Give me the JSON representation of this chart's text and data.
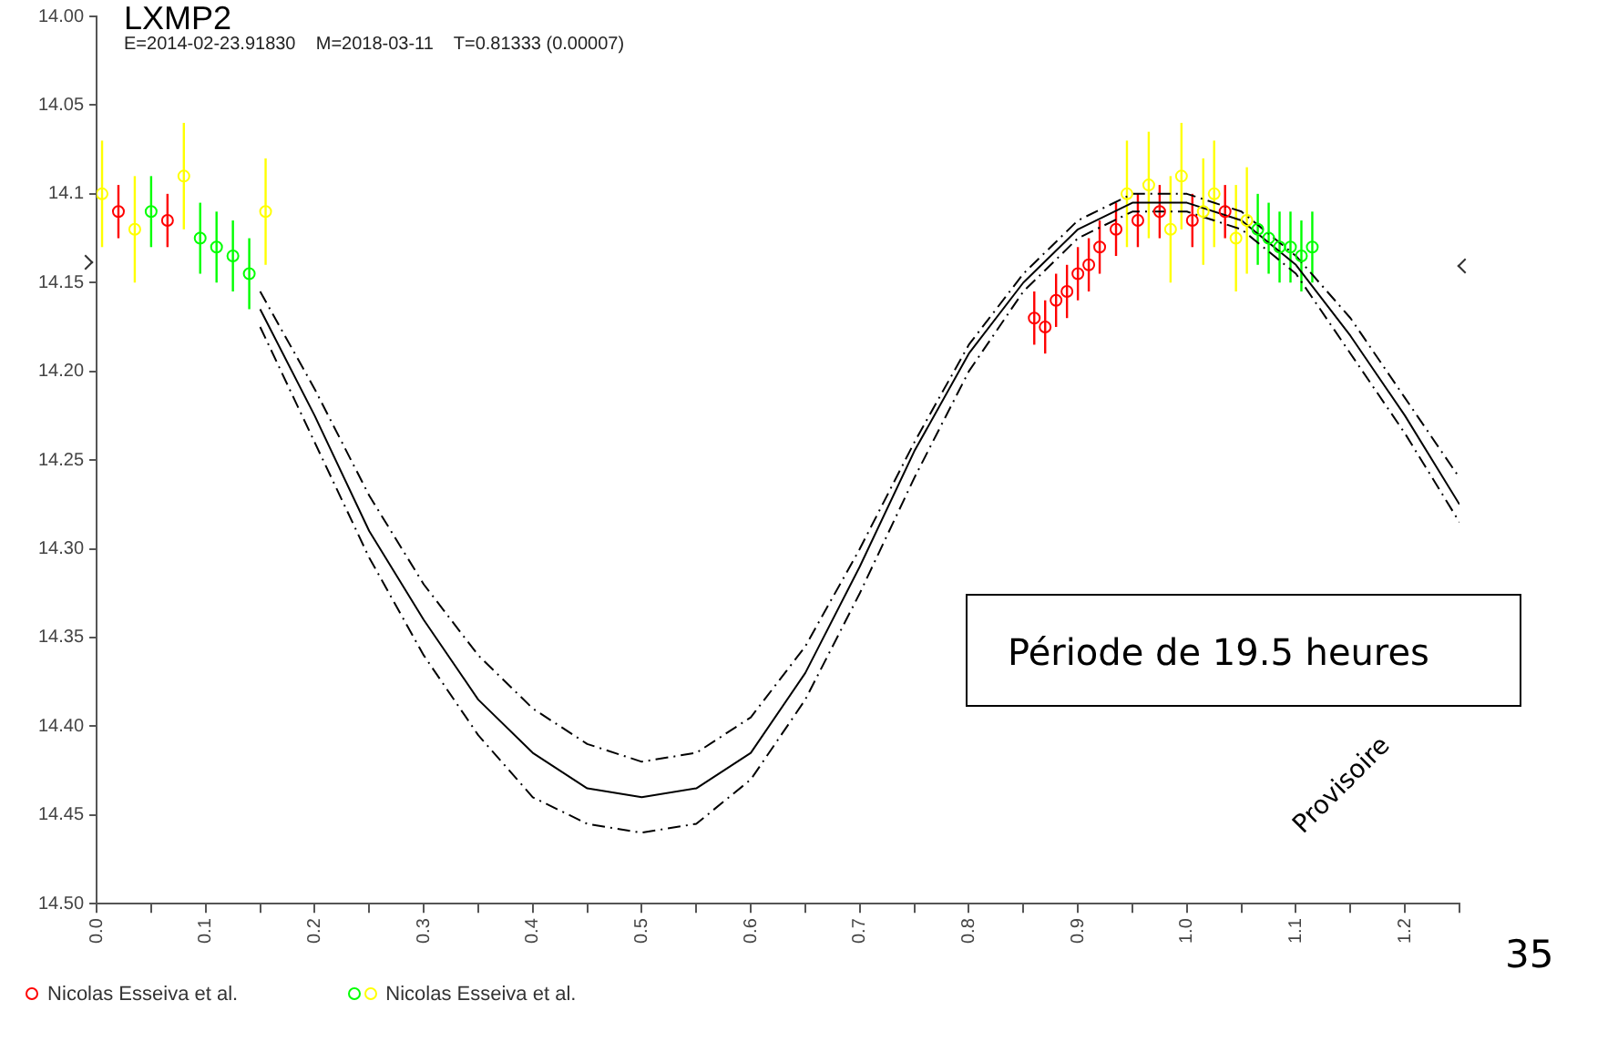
{
  "chart_data": {
    "type": "scatter",
    "title": "LXMP2",
    "subtitle": "E=2014-02-23.91830    M=2018-03-11    T=0.81333 (0.00007)",
    "xlim": [
      0,
      1.25
    ],
    "xticks": [
      {
        "value": 0,
        "label": "0.0"
      },
      {
        "value": 0.05,
        "label": null
      },
      {
        "value": 0.1,
        "label": "0.1"
      },
      {
        "value": 0.15,
        "label": null
      },
      {
        "value": 0.2,
        "label": "0.2"
      },
      {
        "value": 0.25,
        "label": null
      },
      {
        "value": 0.3,
        "label": "0.3"
      },
      {
        "value": 0.35,
        "label": null
      },
      {
        "value": 0.4,
        "label": "0.4"
      },
      {
        "value": 0.45,
        "label": null
      },
      {
        "value": 0.5,
        "label": "0.5"
      },
      {
        "value": 0.55,
        "label": null
      },
      {
        "value": 0.6,
        "label": "0.6"
      },
      {
        "value": 0.65,
        "label": null
      },
      {
        "value": 0.7,
        "label": "0.7"
      },
      {
        "value": 0.75,
        "label": null
      },
      {
        "value": 0.8,
        "label": "0.8"
      },
      {
        "value": 0.85,
        "label": null
      },
      {
        "value": 0.9,
        "label": "0.9"
      },
      {
        "value": 0.95,
        "label": null
      },
      {
        "value": 1,
        "label": "1.0"
      },
      {
        "value": 1.05,
        "label": null
      },
      {
        "value": 1.1,
        "label": "1.1"
      },
      {
        "value": 1.15,
        "label": null
      },
      {
        "value": 1.2,
        "label": "1.2"
      },
      {
        "value": 1.25,
        "label": null
      }
    ],
    "ylim": [
      14.5,
      14.0
    ],
    "yticks": [
      {
        "value": 14,
        "label": "14.00"
      },
      {
        "value": 14.05,
        "label": "14.05"
      },
      {
        "value": 14.1,
        "label": "14.1"
      },
      {
        "value": 14.15,
        "label": "14.15"
      },
      {
        "value": 14.2,
        "label": "14.20"
      },
      {
        "value": 14.25,
        "label": "14.25"
      },
      {
        "value": 14.3,
        "label": "14.30"
      },
      {
        "value": 14.35,
        "label": "14.35"
      },
      {
        "value": 14.4,
        "label": "14.40"
      },
      {
        "value": 14.45,
        "label": "14.45"
      },
      {
        "value": 14.5,
        "label": "14.50"
      }
    ],
    "grid": false,
    "legend": "bottom left",
    "marker": "circle",
    "annotations": [
      "Période de 19.5 heures",
      "Provisoire",
      "35"
    ],
    "series": [
      {
        "type": "line",
        "color": "#000000",
        "line_style": "dashed",
        "marker": "none",
        "x": [
          0.15,
          0.2,
          0.25,
          0.3,
          0.35,
          0.4,
          0.45,
          0.5,
          0.55,
          0.6,
          0.65,
          0.7,
          0.75,
          0.8,
          0.85,
          0.9,
          0.95,
          1.0,
          1.05,
          1.1,
          1.15,
          1.2,
          1.25
        ],
        "values": [
          14.155,
          14.21,
          14.27,
          14.32,
          14.36,
          14.39,
          14.41,
          14.42,
          14.415,
          14.395,
          14.355,
          14.3,
          14.24,
          14.185,
          14.145,
          14.115,
          14.1,
          14.1,
          14.11,
          14.135,
          14.17,
          14.215,
          14.26
        ]
      },
      {
        "type": "line",
        "color": "#000000",
        "line_style": "solid",
        "marker": "none",
        "x": [
          0.15,
          0.2,
          0.25,
          0.3,
          0.35,
          0.4,
          0.45,
          0.5,
          0.55,
          0.6,
          0.65,
          0.7,
          0.75,
          0.8,
          0.85,
          0.9,
          0.95,
          1.0,
          1.05,
          1.1,
          1.15,
          1.2,
          1.25
        ],
        "values": [
          14.165,
          14.225,
          14.29,
          14.34,
          14.385,
          14.415,
          14.435,
          14.44,
          14.435,
          14.415,
          14.37,
          14.31,
          14.245,
          14.19,
          14.15,
          14.12,
          14.105,
          14.105,
          14.115,
          14.14,
          14.18,
          14.225,
          14.275
        ]
      },
      {
        "type": "line",
        "color": "#000000",
        "line_style": "dashed",
        "marker": "none",
        "x": [
          0.15,
          0.2,
          0.25,
          0.3,
          0.35,
          0.4,
          0.45,
          0.5,
          0.55,
          0.6,
          0.65,
          0.7,
          0.75,
          0.8,
          0.85,
          0.9,
          0.95,
          1.0,
          1.05,
          1.1,
          1.15,
          1.2,
          1.25
        ],
        "values": [
          14.175,
          14.24,
          14.305,
          14.36,
          14.405,
          14.44,
          14.455,
          14.46,
          14.455,
          14.43,
          14.385,
          14.325,
          14.26,
          14.2,
          14.155,
          14.125,
          14.11,
          14.11,
          14.12,
          14.145,
          14.19,
          14.235,
          14.285
        ]
      },
      {
        "name": "Nicolas Esseiva et al.",
        "color": "#ff0000",
        "x": [
          0.02,
          0.065,
          0.86,
          0.87,
          0.88,
          0.89,
          0.9,
          0.91,
          0.92,
          0.935,
          0.955,
          0.975,
          1.005,
          1.035
        ],
        "values": [
          14.11,
          14.115,
          14.17,
          14.175,
          14.16,
          14.155,
          14.145,
          14.14,
          14.13,
          14.12,
          14.115,
          14.11,
          14.115,
          14.11
        ],
        "errors": [
          0.015,
          0.015,
          0.015,
          0.015,
          0.015,
          0.015,
          0.015,
          0.015,
          0.015,
          0.015,
          0.015,
          0.015,
          0.015,
          0.015
        ]
      },
      {
        "color": "#00ff00",
        "x": [
          0.05,
          0.095,
          0.11,
          0.125,
          0.14,
          1.065,
          1.075,
          1.085,
          1.095,
          1.105,
          1.115
        ],
        "values": [
          14.11,
          14.125,
          14.13,
          14.135,
          14.145,
          14.12,
          14.125,
          14.13,
          14.13,
          14.135,
          14.13
        ],
        "errors": [
          0.02,
          0.02,
          0.02,
          0.02,
          0.02,
          0.02,
          0.02,
          0.02,
          0.02,
          0.02,
          0.02
        ]
      },
      {
        "name": "Nicolas Esseiva et al.",
        "color": "#ffff00",
        "x": [
          0.005,
          0.035,
          0.08,
          0.155,
          0.945,
          0.965,
          0.985,
          0.995,
          1.015,
          1.025,
          1.045,
          1.055
        ],
        "values": [
          14.1,
          14.12,
          14.09,
          14.11,
          14.1,
          14.095,
          14.12,
          14.09,
          14.11,
          14.1,
          14.125,
          14.115
        ],
        "errors": [
          0.03,
          0.03,
          0.03,
          0.03,
          0.03,
          0.03,
          0.03,
          0.03,
          0.03,
          0.03,
          0.03,
          0.03
        ]
      }
    ]
  }
}
